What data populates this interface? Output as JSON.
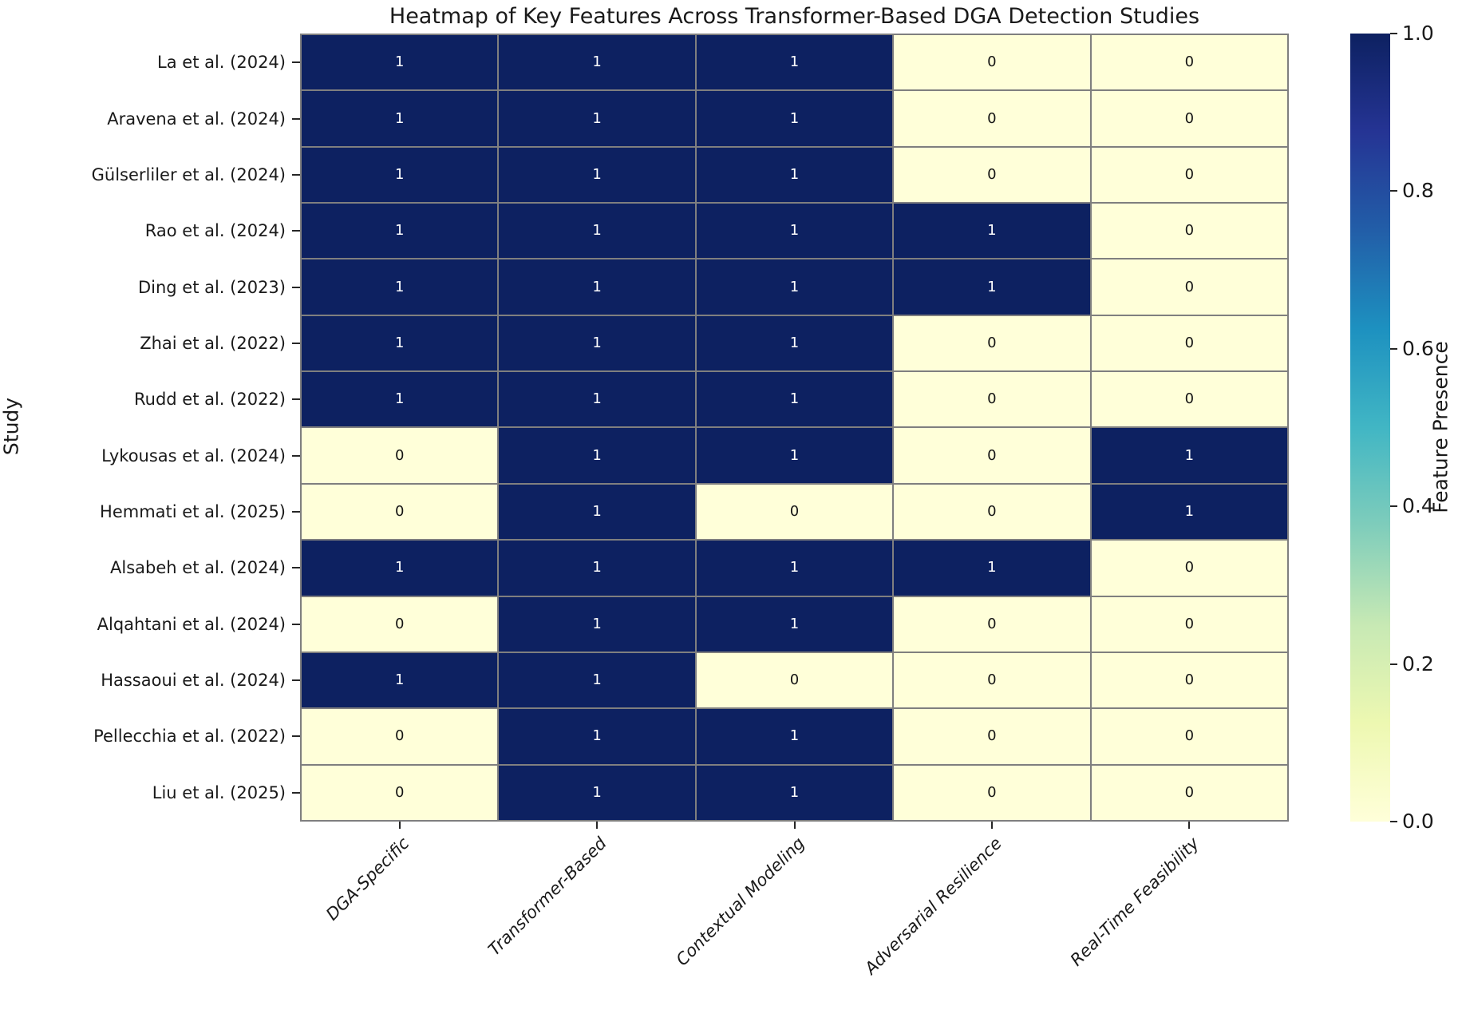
{
  "chart_data": {
    "type": "heatmap",
    "title": "Heatmap of Key Features Across Transformer-Based DGA Detection Studies",
    "xlabel": "",
    "ylabel": "Study",
    "colorbar_label": "Feature Presence",
    "columns": [
      "DGA-Specific",
      "Transformer-Based",
      "Contextual Modeling",
      "Adversarial Resilience",
      "Real-Time Feasibility"
    ],
    "rows": [
      "La et al. (2024)",
      "Aravena et al. (2024)",
      "Gülserliler et al. (2024)",
      "Rao et al. (2024)",
      "Ding et al. (2023)",
      "Zhai et al. (2022)",
      "Rudd et al. (2022)",
      "Lykousas et al. (2024)",
      "Hemmati et al. (2025)",
      "Alsabeh et al. (2024)",
      "Alqahtani et al. (2024)",
      "Hassaoui et al. (2024)",
      "Pellecchia et al. (2022)",
      "Liu et al. (2025)"
    ],
    "values": [
      [
        1,
        1,
        1,
        0,
        0
      ],
      [
        1,
        1,
        1,
        0,
        0
      ],
      [
        1,
        1,
        1,
        0,
        0
      ],
      [
        1,
        1,
        1,
        1,
        0
      ],
      [
        1,
        1,
        1,
        1,
        0
      ],
      [
        1,
        1,
        1,
        0,
        0
      ],
      [
        1,
        1,
        1,
        0,
        0
      ],
      [
        0,
        1,
        1,
        0,
        1
      ],
      [
        0,
        1,
        0,
        0,
        1
      ],
      [
        1,
        1,
        1,
        1,
        0
      ],
      [
        0,
        1,
        1,
        0,
        0
      ],
      [
        1,
        1,
        0,
        0,
        0
      ],
      [
        0,
        1,
        1,
        0,
        0
      ],
      [
        0,
        1,
        1,
        0,
        0
      ]
    ],
    "vmin": 0,
    "vmax": 1,
    "grid": true,
    "colorbar_ticks": [
      "0.0",
      "0.2",
      "0.4",
      "0.6",
      "0.8",
      "1.0"
    ],
    "colormap": "YlGnBu",
    "colormap_stops": [
      "#ffffd9",
      "#edf8b1",
      "#c7e9b4",
      "#7fcdbb",
      "#41b6c4",
      "#1d91c0",
      "#225ea8",
      "#253494",
      "#0d2161"
    ],
    "cell_colors": {
      "value_1": "#0d2161",
      "value_0": "#ffffd9"
    },
    "annotation_colors": {
      "on_dark": "#ffffff",
      "on_light": "#141414"
    },
    "line_color": "#7f7f7f",
    "legend_position": "right-colorbar"
  }
}
